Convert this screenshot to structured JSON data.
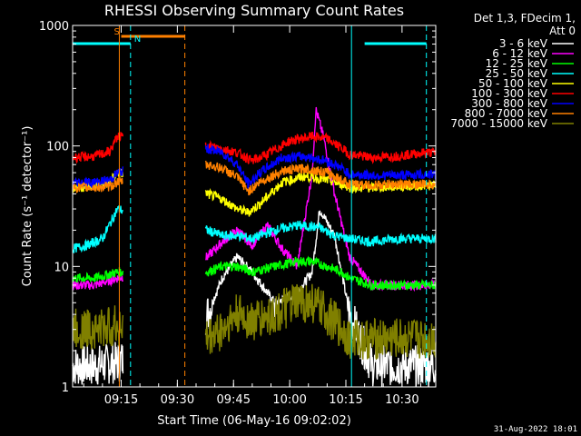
{
  "chart_data": {
    "type": "line",
    "title": "RHESSI Observing Summary Count Rates",
    "xlabel": "Start Time (06-May-16 09:02:02)",
    "ylabel": "Count Rate (s⁻¹ detector⁻¹)",
    "yscale": "log",
    "ylim": [
      1,
      1000
    ],
    "xlim": [
      "09:02:02",
      "10:39:00"
    ],
    "x_ticks": [
      "09:15",
      "09:30",
      "09:45",
      "10:00",
      "10:15",
      "10:30"
    ],
    "y_ticks": [
      "1",
      "10",
      "100",
      "1000"
    ],
    "legend_header": [
      "Det 1,3, FDecim 1,",
      "Att 0"
    ],
    "legend_position": "top-right",
    "flags": [
      {
        "label": "S",
        "color": "#ff8000",
        "start": "09:15:00",
        "end": "09:32:00"
      },
      {
        "label": "N",
        "color": "#00ffff",
        "start": "09:02:02",
        "end": "09:17:30"
      },
      {
        "label": "",
        "color": "#00ffff",
        "start": "10:20:00",
        "end": "10:36:30"
      }
    ],
    "markers": [
      {
        "time": "09:17:30",
        "color": "#00ffff",
        "style": "dashed"
      },
      {
        "time": "09:32:00",
        "color": "#ff8000",
        "style": "dashed"
      },
      {
        "time": "10:16:30",
        "color": "#00ffff",
        "style": "solid"
      },
      {
        "time": "10:36:30",
        "color": "#00ffff",
        "style": "dashed"
      },
      {
        "time": "09:14:30",
        "color": "#ff8000",
        "style": "solid"
      }
    ],
    "series": [
      {
        "name": "3 - 6 keV",
        "color": "#ffffff",
        "x": [
          "09:02",
          "09:08",
          "09:14",
          "09:38",
          "09:42",
          "09:46",
          "09:50",
          "09:56",
          "10:02",
          "10:06",
          "10:08",
          "10:12",
          "10:16",
          "10:22",
          "10:28",
          "10:36"
        ],
        "y": [
          1.5,
          1.5,
          1.6,
          4,
          8,
          12,
          9,
          5,
          6,
          9,
          30,
          18,
          4,
          1.5,
          1.5,
          1.5
        ]
      },
      {
        "name": "6 - 12 keV",
        "color": "#ff00ff",
        "x": [
          "09:02",
          "09:08",
          "09:14",
          "09:38",
          "09:42",
          "09:46",
          "09:50",
          "09:54",
          "09:58",
          "10:02",
          "10:06",
          "10:07",
          "10:09",
          "10:12",
          "10:16",
          "10:22",
          "10:28",
          "10:36"
        ],
        "y": [
          7,
          7,
          8,
          12,
          16,
          20,
          15,
          22,
          14,
          10,
          60,
          200,
          120,
          40,
          12,
          7,
          7,
          7
        ]
      },
      {
        "name": "12 - 25 keV",
        "color": "#00ff00",
        "x": [
          "09:02",
          "09:08",
          "09:14",
          "09:38",
          "09:42",
          "09:46",
          "09:50",
          "09:56",
          "10:02",
          "10:06",
          "10:10",
          "10:14",
          "10:16",
          "10:22",
          "10:28",
          "10:36"
        ],
        "y": [
          8,
          8,
          9,
          9,
          10,
          10,
          9,
          10,
          11,
          11,
          10,
          9,
          8,
          7,
          7,
          7
        ]
      },
      {
        "name": "25 - 50 keV",
        "color": "#00ffff",
        "x": [
          "09:02",
          "09:06",
          "09:10",
          "09:14",
          "09:38",
          "09:42",
          "09:46",
          "09:50",
          "09:56",
          "10:02",
          "10:08",
          "10:12",
          "10:16",
          "10:22",
          "10:28",
          "10:36"
        ],
        "y": [
          14,
          15,
          17,
          30,
          20,
          18,
          18,
          17,
          20,
          22,
          21,
          18,
          17,
          16,
          17,
          17
        ]
      },
      {
        "name": "50 - 100 keV",
        "color": "#ffff00",
        "x": [
          "09:02",
          "09:08",
          "09:12",
          "09:14",
          "09:38",
          "09:42",
          "09:46",
          "09:49",
          "09:52",
          "09:58",
          "10:04",
          "10:10",
          "10:14",
          "10:16",
          "10:22",
          "10:28",
          "10:36"
        ],
        "y": [
          45,
          46,
          50,
          60,
          40,
          36,
          30,
          28,
          33,
          50,
          56,
          52,
          48,
          45,
          45,
          46,
          47
        ]
      },
      {
        "name": "100 - 300 keV",
        "color": "#ff0000",
        "x": [
          "09:02",
          "09:08",
          "09:12",
          "09:14",
          "09:38",
          "09:42",
          "09:46",
          "09:50",
          "09:54",
          "10:00",
          "10:06",
          "10:10",
          "10:14",
          "10:16",
          "10:22",
          "10:28",
          "10:36"
        ],
        "y": [
          80,
          82,
          90,
          120,
          100,
          95,
          88,
          75,
          85,
          110,
          120,
          115,
          95,
          85,
          80,
          82,
          88
        ]
      },
      {
        "name": "300 - 800 keV",
        "color": "#0000ff",
        "x": [
          "09:02",
          "09:08",
          "09:12",
          "09:14",
          "09:38",
          "09:42",
          "09:46",
          "09:49",
          "09:52",
          "09:58",
          "10:04",
          "10:10",
          "10:14",
          "10:16",
          "10:22",
          "10:28",
          "10:36"
        ],
        "y": [
          50,
          50,
          52,
          60,
          95,
          88,
          70,
          48,
          60,
          80,
          82,
          75,
          65,
          58,
          57,
          57,
          58
        ]
      },
      {
        "name": "800 - 7000 keV",
        "color": "#ff8000",
        "x": [
          "09:02",
          "09:08",
          "09:12",
          "09:14",
          "09:38",
          "09:42",
          "09:46",
          "09:49",
          "09:52",
          "09:58",
          "10:04",
          "10:10",
          "10:14",
          "10:16",
          "10:22",
          "10:28",
          "10:36"
        ],
        "y": [
          45,
          45,
          46,
          50,
          70,
          65,
          55,
          42,
          50,
          62,
          65,
          60,
          52,
          48,
          47,
          48,
          48
        ]
      },
      {
        "name": "7000 - 15000 keV",
        "color": "#808000",
        "x": [
          "09:02",
          "09:08",
          "09:14",
          "09:38",
          "09:42",
          "09:46",
          "09:50",
          "09:56",
          "10:02",
          "10:06",
          "10:10",
          "10:14",
          "10:16",
          "10:22",
          "10:28",
          "10:36"
        ],
        "y": [
          3,
          3,
          3.2,
          2.5,
          3,
          4,
          3.5,
          4,
          5,
          5,
          4,
          3,
          2.5,
          2.5,
          2.5,
          2.5
        ]
      }
    ]
  },
  "timestamp": "31-Aug-2022 18:01"
}
